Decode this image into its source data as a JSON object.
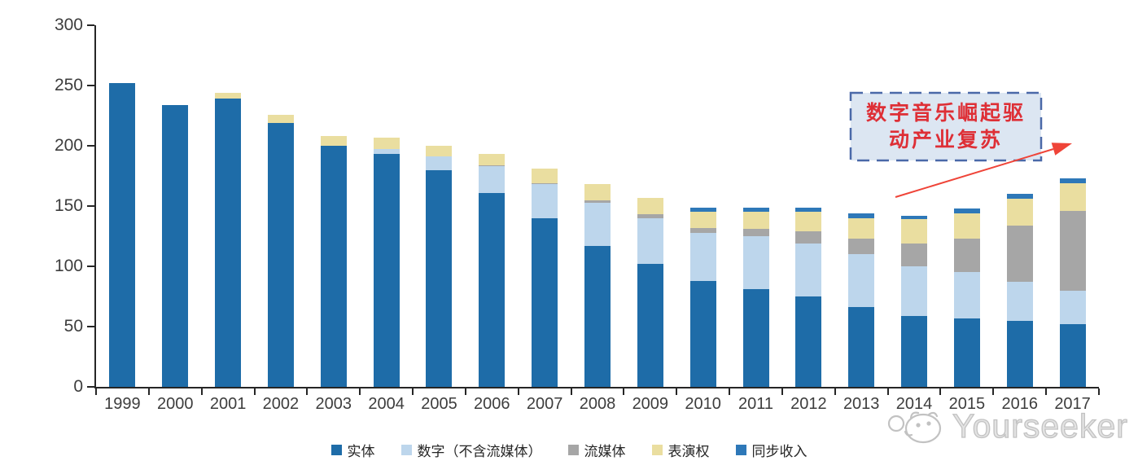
{
  "chart_data": {
    "type": "bar",
    "stacked": true,
    "categories": [
      "1999",
      "2000",
      "2001",
      "2002",
      "2003",
      "2004",
      "2005",
      "2006",
      "2007",
      "2008",
      "2009",
      "2010",
      "2011",
      "2012",
      "2013",
      "2014",
      "2015",
      "2016",
      "2017"
    ],
    "series": [
      {
        "name": "实体",
        "color": "#1e6ca8",
        "values": [
          252,
          234,
          239,
          219,
          200,
          193,
          180,
          161,
          140,
          117,
          102,
          88,
          81,
          75,
          66,
          59,
          57,
          55,
          52
        ]
      },
      {
        "name": "数字（不含流媒体）",
        "color": "#bdd6ec",
        "values": [
          0,
          0,
          0,
          0,
          0,
          4,
          11,
          22,
          28,
          36,
          38,
          40,
          44,
          44,
          44,
          41,
          38,
          32,
          28
        ]
      },
      {
        "name": "流媒体",
        "color": "#a6a6a6",
        "values": [
          0,
          0,
          0,
          0,
          0,
          0,
          0,
          1,
          1,
          2,
          3,
          4,
          6,
          10,
          13,
          19,
          28,
          47,
          66
        ]
      },
      {
        "name": "表演权",
        "color": "#eadea0",
        "values": [
          0,
          0,
          5,
          7,
          8,
          10,
          9,
          9,
          12,
          13,
          14,
          13,
          14,
          16,
          17,
          20,
          21,
          22,
          23
        ]
      },
      {
        "name": "同步收入",
        "color": "#2e78b8",
        "values": [
          0,
          0,
          0,
          0,
          0,
          0,
          0,
          0,
          0,
          0,
          0,
          4,
          4,
          4,
          4,
          3,
          4,
          4,
          4
        ]
      }
    ],
    "ylim": [
      0,
      300
    ],
    "ytick_step": 50,
    "y_tick_labels": [
      "0",
      "50",
      "100",
      "150",
      "200",
      "250",
      "300"
    ],
    "grid": false,
    "legend_position": "bottom",
    "axis_color": "#262626",
    "label_color": "#3d3d3d"
  },
  "annotation": {
    "lines": {
      "0": "数字音乐崛起驱",
      "1": "动产业复苏"
    },
    "text_color": "#de2f36",
    "box_fill": "#dce6f2",
    "box_border": "#4a69a8",
    "arrow_color": "#ef4438"
  },
  "watermark": {
    "text": "Yourseeker",
    "logo": "cat-face-logo",
    "color": "#c2c2c2"
  }
}
